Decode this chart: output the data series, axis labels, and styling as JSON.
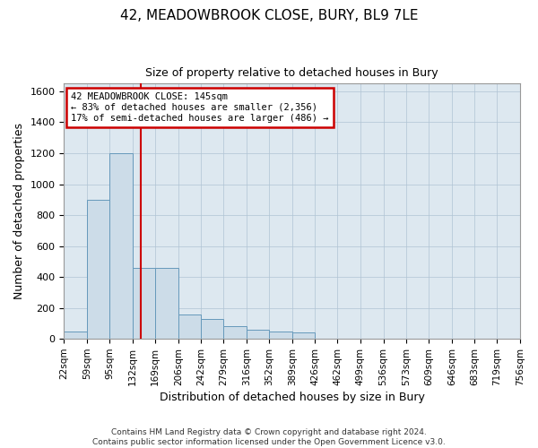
{
  "title_line1": "42, MEADOWBROOK CLOSE, BURY, BL9 7LE",
  "title_line2": "Size of property relative to detached houses in Bury",
  "xlabel": "Distribution of detached houses by size in Bury",
  "ylabel": "Number of detached properties",
  "bar_color": "#ccdce8",
  "bar_edge_color": "#6699bb",
  "grid_color": "#b0c4d4",
  "background_color": "#dde8f0",
  "property_line_color": "#cc0000",
  "property_size": 145,
  "annotation_text": "42 MEADOWBROOK CLOSE: 145sqm\n← 83% of detached houses are smaller (2,356)\n17% of semi-detached houses are larger (486) →",
  "footnote": "Contains HM Land Registry data © Crown copyright and database right 2024.\nContains public sector information licensed under the Open Government Licence v3.0.",
  "bins": [
    22,
    59,
    95,
    132,
    169,
    206,
    242,
    279,
    316,
    352,
    389,
    426,
    462,
    499,
    536,
    573,
    609,
    646,
    683,
    719,
    756
  ],
  "bin_labels": [
    "22sqm",
    "59sqm",
    "95sqm",
    "132sqm",
    "169sqm",
    "206sqm",
    "242sqm",
    "279sqm",
    "316sqm",
    "352sqm",
    "389sqm",
    "426sqm",
    "462sqm",
    "499sqm",
    "536sqm",
    "573sqm",
    "609sqm",
    "646sqm",
    "683sqm",
    "719sqm",
    "756sqm"
  ],
  "bar_heights": [
    50,
    900,
    1200,
    460,
    460,
    160,
    130,
    80,
    60,
    50,
    40,
    0,
    0,
    0,
    0,
    0,
    0,
    0,
    0,
    0
  ],
  "ylim": [
    0,
    1650
  ],
  "yticks": [
    0,
    200,
    400,
    600,
    800,
    1000,
    1200,
    1400,
    1600
  ]
}
